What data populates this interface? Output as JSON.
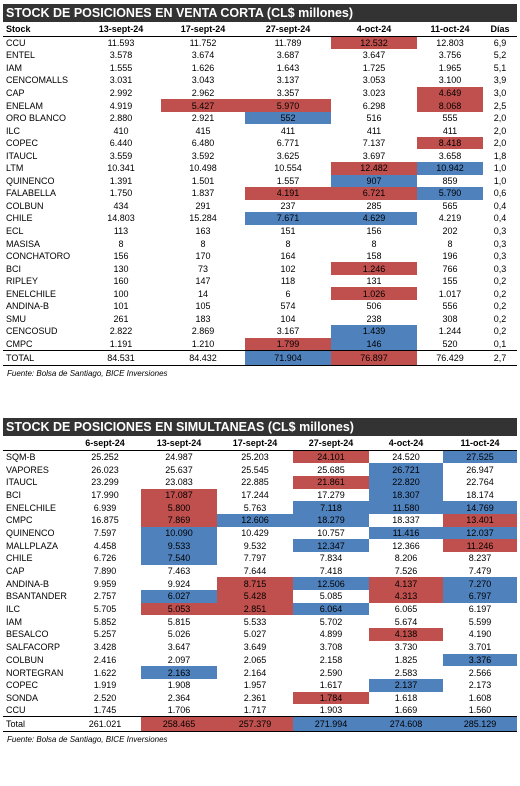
{
  "venta_corta": {
    "title": "STOCK DE POSICIONES EN VENTA CORTA (CL$ millones)",
    "headers": [
      "Stock",
      "13-sept-24",
      "17-sept-24",
      "27-sept-24",
      "4-oct-24",
      "11-oct-24",
      "Días"
    ],
    "rows": [
      {
        "name": "CCU",
        "v": [
          "11.593",
          "11.752",
          "11.789",
          "12.532",
          "12.803",
          "6,9"
        ],
        "h": [
          "",
          "",
          "",
          "r",
          "",
          ""
        ]
      },
      {
        "name": "ENTEL",
        "v": [
          "3.578",
          "3.674",
          "3.687",
          "3.647",
          "3.756",
          "5,2"
        ],
        "h": [
          "",
          "",
          "",
          "",
          "",
          ""
        ]
      },
      {
        "name": "IAM",
        "v": [
          "1.555",
          "1.626",
          "1.643",
          "1.725",
          "1.965",
          "5,1"
        ],
        "h": [
          "",
          "",
          "",
          "",
          "",
          ""
        ]
      },
      {
        "name": "CENCOMALLS",
        "v": [
          "3.031",
          "3.043",
          "3.137",
          "3.053",
          "3.100",
          "3,9"
        ],
        "h": [
          "",
          "",
          "",
          "",
          "",
          ""
        ]
      },
      {
        "name": "CAP",
        "v": [
          "2.992",
          "2.962",
          "3.357",
          "3.023",
          "4.649",
          "3,0"
        ],
        "h": [
          "",
          "",
          "",
          "",
          "r",
          ""
        ]
      },
      {
        "name": "ENELAM",
        "v": [
          "4.919",
          "5.427",
          "5.970",
          "6.298",
          "8.068",
          "2,5"
        ],
        "h": [
          "",
          "r",
          "r",
          "",
          "r",
          ""
        ]
      },
      {
        "name": "ORO BLANCO",
        "v": [
          "2.880",
          "2.921",
          "552",
          "516",
          "555",
          "2,0"
        ],
        "h": [
          "",
          "",
          "b",
          "",
          "",
          ""
        ]
      },
      {
        "name": "ILC",
        "v": [
          "410",
          "415",
          "411",
          "411",
          "411",
          "2,0"
        ],
        "h": [
          "",
          "",
          "",
          "",
          "",
          ""
        ]
      },
      {
        "name": "COPEC",
        "v": [
          "6.440",
          "6.480",
          "6.771",
          "7.137",
          "8.418",
          "2,0"
        ],
        "h": [
          "",
          "",
          "",
          "",
          "r",
          ""
        ]
      },
      {
        "name": "ITAUCL",
        "v": [
          "3.559",
          "3.592",
          "3.625",
          "3.697",
          "3.658",
          "1,8"
        ],
        "h": [
          "",
          "",
          "",
          "",
          "",
          ""
        ]
      },
      {
        "name": "LTM",
        "v": [
          "10.341",
          "10.498",
          "10.554",
          "12.482",
          "10.942",
          "1,0"
        ],
        "h": [
          "",
          "",
          "",
          "r",
          "b",
          ""
        ]
      },
      {
        "name": "QUINENCO",
        "v": [
          "1.391",
          "1.501",
          "1.557",
          "907",
          "859",
          "1,0"
        ],
        "h": [
          "",
          "",
          "",
          "b",
          "",
          ""
        ]
      },
      {
        "name": "FALABELLA",
        "v": [
          "1.750",
          "1.837",
          "4.191",
          "6.721",
          "5.790",
          "0,6"
        ],
        "h": [
          "",
          "",
          "r",
          "r",
          "b",
          ""
        ]
      },
      {
        "name": "COLBUN",
        "v": [
          "434",
          "291",
          "237",
          "285",
          "565",
          "0,4"
        ],
        "h": [
          "",
          "",
          "",
          "",
          "",
          ""
        ]
      },
      {
        "name": "CHILE",
        "v": [
          "14.803",
          "15.284",
          "7.671",
          "4.629",
          "4.219",
          "0,4"
        ],
        "h": [
          "",
          "",
          "b",
          "b",
          "",
          ""
        ]
      },
      {
        "name": "ECL",
        "v": [
          "113",
          "163",
          "151",
          "156",
          "202",
          "0,3"
        ],
        "h": [
          "",
          "",
          "",
          "",
          "",
          ""
        ]
      },
      {
        "name": "MASISA",
        "v": [
          "8",
          "8",
          "8",
          "8",
          "8",
          "0,3"
        ],
        "h": [
          "",
          "",
          "",
          "",
          "",
          ""
        ]
      },
      {
        "name": "CONCHATORO",
        "v": [
          "156",
          "170",
          "164",
          "158",
          "196",
          "0,3"
        ],
        "h": [
          "",
          "",
          "",
          "",
          "",
          ""
        ]
      },
      {
        "name": "BCI",
        "v": [
          "130",
          "73",
          "102",
          "1.246",
          "766",
          "0,3"
        ],
        "h": [
          "",
          "",
          "",
          "r",
          "",
          ""
        ]
      },
      {
        "name": "RIPLEY",
        "v": [
          "160",
          "147",
          "118",
          "131",
          "155",
          "0,2"
        ],
        "h": [
          "",
          "",
          "",
          "",
          "",
          ""
        ]
      },
      {
        "name": "ENELCHILE",
        "v": [
          "100",
          "14",
          "6",
          "1.026",
          "1.017",
          "0,2"
        ],
        "h": [
          "",
          "",
          "",
          "r",
          "",
          ""
        ]
      },
      {
        "name": "ANDINA-B",
        "v": [
          "101",
          "105",
          "574",
          "506",
          "556",
          "0,2"
        ],
        "h": [
          "",
          "",
          "",
          "",
          "",
          ""
        ]
      },
      {
        "name": "SMU",
        "v": [
          "261",
          "183",
          "104",
          "238",
          "308",
          "0,2"
        ],
        "h": [
          "",
          "",
          "",
          "",
          "",
          ""
        ]
      },
      {
        "name": "CENCOSUD",
        "v": [
          "2.822",
          "2.869",
          "3.167",
          "1.439",
          "1.244",
          "0,2"
        ],
        "h": [
          "",
          "",
          "",
          "b",
          "",
          ""
        ]
      },
      {
        "name": "CMPC",
        "v": [
          "1.191",
          "1.210",
          "1.799",
          "146",
          "520",
          "0,1"
        ],
        "h": [
          "",
          "",
          "r",
          "b",
          "",
          ""
        ]
      }
    ],
    "total": {
      "name": "TOTAL",
      "v": [
        "84.531",
        "84.432",
        "71.904",
        "76.897",
        "76.429",
        "2,7"
      ],
      "h": [
        "",
        "",
        "b",
        "r",
        "",
        ""
      ]
    },
    "source": "Fuente: Bolsa de Santiago, BICE Inversiones"
  },
  "simultaneas": {
    "title": "STOCK DE POSICIONES EN SIMULTANEAS (CL$ millones)",
    "headers": [
      "",
      "6-sept-24",
      "13-sept-24",
      "17-sept-24",
      "27-sept-24",
      "4-oct-24",
      "11-oct-24"
    ],
    "rows": [
      {
        "name": "SQM-B",
        "v": [
          "25.252",
          "24.987",
          "25.203",
          "24.101",
          "24.520",
          "27.525"
        ],
        "h": [
          "",
          "",
          "",
          "r",
          "",
          "b"
        ]
      },
      {
        "name": "VAPORES",
        "v": [
          "26.023",
          "25.637",
          "25.545",
          "25.685",
          "26.721",
          "26.947"
        ],
        "h": [
          "",
          "",
          "",
          "",
          "b",
          ""
        ]
      },
      {
        "name": "ITAUCL",
        "v": [
          "23.299",
          "23.083",
          "22.885",
          "21.861",
          "22.820",
          "22.764"
        ],
        "h": [
          "",
          "",
          "",
          "r",
          "b",
          ""
        ]
      },
      {
        "name": "BCI",
        "v": [
          "17.990",
          "17.087",
          "17.244",
          "17.279",
          "18.307",
          "18.174"
        ],
        "h": [
          "",
          "r",
          "",
          "",
          "b",
          ""
        ]
      },
      {
        "name": "ENELCHILE",
        "v": [
          "6.939",
          "5.800",
          "5.763",
          "7.118",
          "11.580",
          "14.769"
        ],
        "h": [
          "",
          "r",
          "",
          "b",
          "b",
          "b"
        ]
      },
      {
        "name": "CMPC",
        "v": [
          "16.875",
          "7.869",
          "12.606",
          "18.279",
          "18.337",
          "13.401"
        ],
        "h": [
          "",
          "r",
          "b",
          "b",
          "",
          "r"
        ]
      },
      {
        "name": "QUINENCO",
        "v": [
          "7.597",
          "10.090",
          "10.429",
          "10.757",
          "11.416",
          "12.037"
        ],
        "h": [
          "",
          "b",
          "",
          "",
          "b",
          "b"
        ]
      },
      {
        "name": "MALLPLAZA",
        "v": [
          "4.458",
          "9.533",
          "9.532",
          "12.347",
          "12.366",
          "11.246"
        ],
        "h": [
          "",
          "b",
          "",
          "b",
          "",
          "r"
        ]
      },
      {
        "name": "CHILE",
        "v": [
          "6.726",
          "7.540",
          "7.797",
          "7.834",
          "8.206",
          "8.237"
        ],
        "h": [
          "",
          "b",
          "",
          "",
          "",
          ""
        ]
      },
      {
        "name": "CAP",
        "v": [
          "7.890",
          "7.463",
          "7.644",
          "7.418",
          "7.526",
          "7.479"
        ],
        "h": [
          "",
          "",
          "",
          "",
          "",
          ""
        ]
      },
      {
        "name": "ANDINA-B",
        "v": [
          "9.959",
          "9.924",
          "8.715",
          "12.506",
          "4.137",
          "7.270"
        ],
        "h": [
          "",
          "",
          "r",
          "b",
          "r",
          "b"
        ]
      },
      {
        "name": "BSANTANDER",
        "v": [
          "2.757",
          "6.027",
          "5.428",
          "5.085",
          "4.313",
          "6.797"
        ],
        "h": [
          "",
          "b",
          "r",
          "",
          "r",
          "b"
        ]
      },
      {
        "name": "ILC",
        "v": [
          "5.705",
          "5.053",
          "2.851",
          "6.064",
          "6.065",
          "6.197"
        ],
        "h": [
          "",
          "r",
          "r",
          "b",
          "",
          ""
        ]
      },
      {
        "name": "IAM",
        "v": [
          "5.852",
          "5.815",
          "5.533",
          "5.702",
          "5.674",
          "5.599"
        ],
        "h": [
          "",
          "",
          "",
          "",
          "",
          ""
        ]
      },
      {
        "name": "BESALCO",
        "v": [
          "5.257",
          "5.026",
          "5.027",
          "4.899",
          "4.138",
          "4.190"
        ],
        "h": [
          "",
          "",
          "",
          "",
          "r",
          ""
        ]
      },
      {
        "name": "SALFACORP",
        "v": [
          "3.428",
          "3.647",
          "3.649",
          "3.708",
          "3.730",
          "3.701"
        ],
        "h": [
          "",
          "",
          "",
          "",
          "",
          ""
        ]
      },
      {
        "name": "COLBUN",
        "v": [
          "2.416",
          "2.097",
          "2.065",
          "2.158",
          "1.825",
          "3.376"
        ],
        "h": [
          "",
          "",
          "",
          "",
          "",
          "b"
        ]
      },
      {
        "name": "NORTEGRAN",
        "v": [
          "1.622",
          "2.163",
          "2.164",
          "2.590",
          "2.583",
          "2.566"
        ],
        "h": [
          "",
          "b",
          "",
          "",
          "",
          ""
        ]
      },
      {
        "name": "COPEC",
        "v": [
          "1.919",
          "1.908",
          "1.957",
          "1.617",
          "2.137",
          "2.173"
        ],
        "h": [
          "",
          "",
          "",
          "",
          "b",
          ""
        ]
      },
      {
        "name": "SONDA",
        "v": [
          "2.520",
          "2.364",
          "2.361",
          "1.784",
          "1.618",
          "1.608"
        ],
        "h": [
          "",
          "",
          "",
          "r",
          "",
          ""
        ]
      },
      {
        "name": "CCU",
        "v": [
          "1.745",
          "1.706",
          "1.717",
          "1.903",
          "1.669",
          "1.560"
        ],
        "h": [
          "",
          "",
          "",
          "",
          "",
          ""
        ]
      }
    ],
    "total": {
      "name": "Total",
      "v": [
        "261.021",
        "258.465",
        "257.379",
        "271.994",
        "274.608",
        "285.129"
      ],
      "h": [
        "",
        "r",
        "r",
        "b",
        "b",
        "b"
      ]
    },
    "source": "Fuente: Bolsa de Santiago, BICE Inversiones"
  }
}
